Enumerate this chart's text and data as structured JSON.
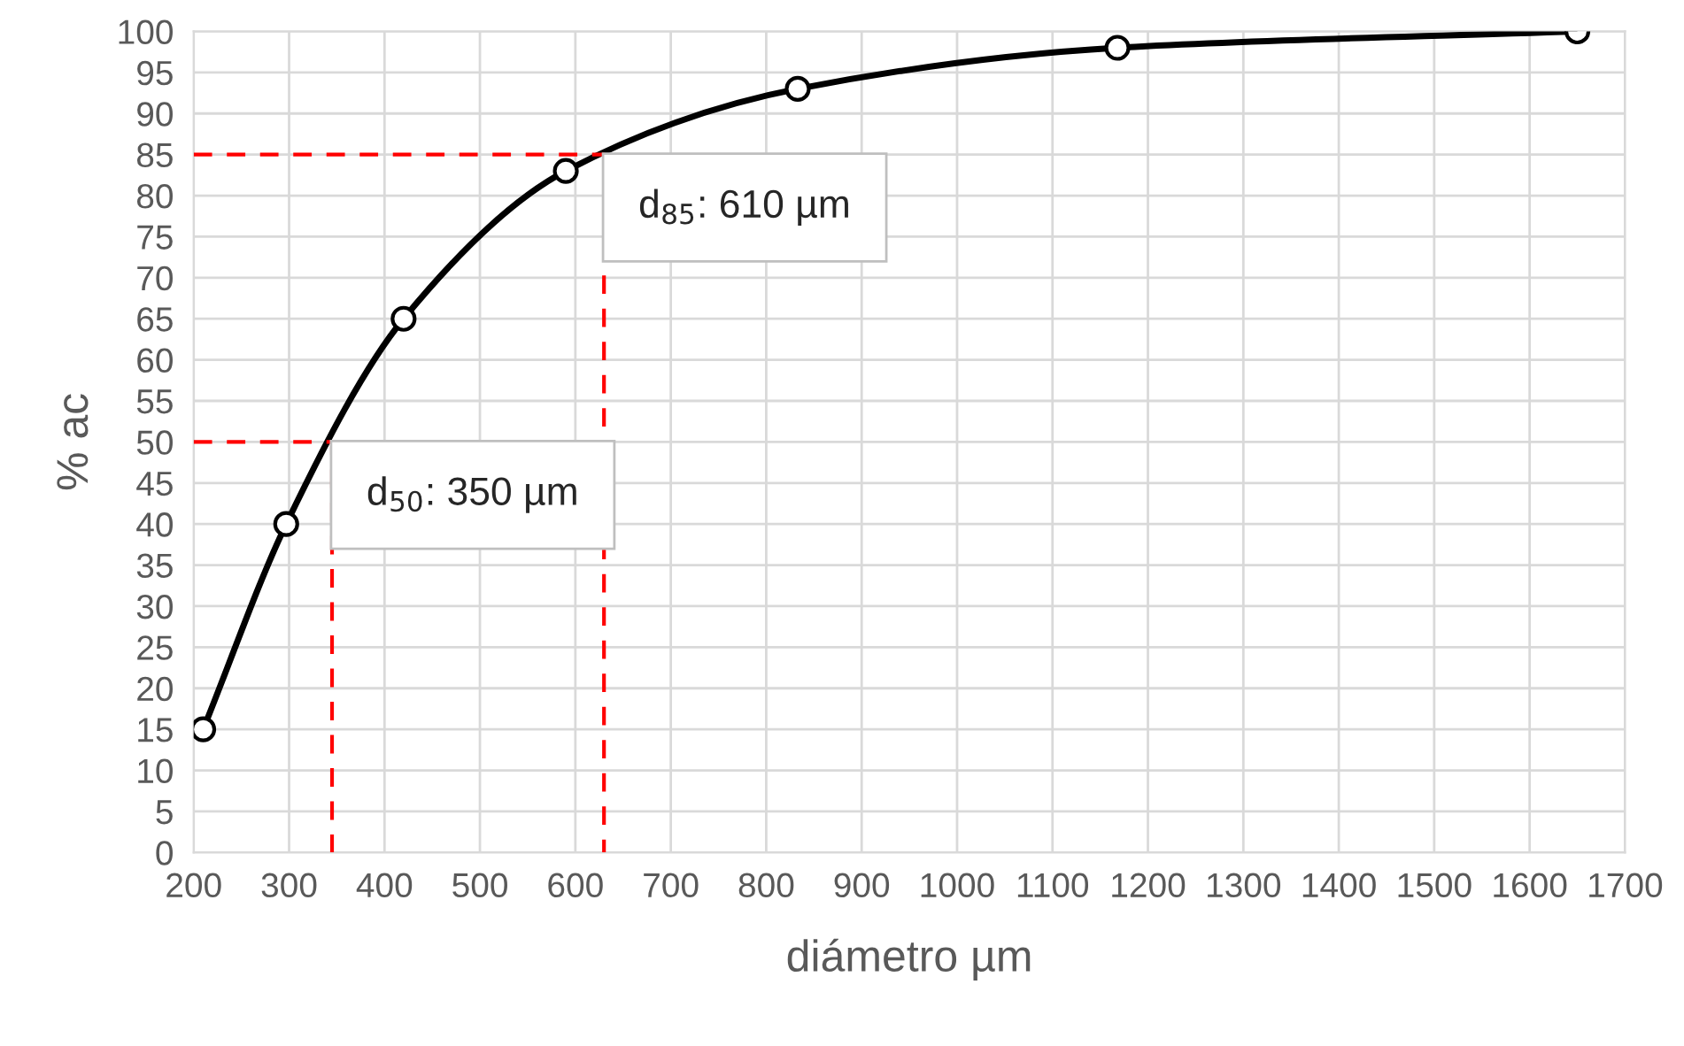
{
  "chart_data": {
    "type": "line",
    "xlabel": "diámetro µm",
    "ylabel": "% ac",
    "series": [
      {
        "color": "#000000",
        "marker": "circle",
        "line_style": "solid",
        "x": [
          210,
          297,
          420,
          590,
          833,
          1168,
          1650
        ],
        "values": [
          15,
          40,
          65,
          83,
          93,
          98,
          100
        ]
      },
      {
        "color": "#ff0000",
        "marker": "none",
        "line_style": "dashed",
        "x": [
          200,
          345,
          345
        ],
        "values": [
          50,
          50,
          0
        ]
      },
      {
        "color": "#ff0000",
        "marker": "none",
        "line_style": "dashed",
        "x": [
          200,
          630,
          630
        ],
        "values": [
          85,
          85,
          0
        ]
      }
    ],
    "annotations": [
      {
        "text": "d$_{50}$: 350 µm",
        "x": 345,
        "y": 50
      },
      {
        "text": "d$_{85}$: 610 µm",
        "x": 630,
        "y": 85
      }
    ],
    "xlim": [
      200,
      1700
    ],
    "xticks": [
      200,
      300,
      400,
      500,
      600,
      700,
      800,
      900,
      1000,
      1100,
      1200,
      1300,
      1400,
      1500,
      1600,
      1700
    ],
    "ylim": [
      0,
      100
    ],
    "yticks": [
      0,
      5,
      10,
      15,
      20,
      25,
      30,
      35,
      40,
      45,
      50,
      55,
      60,
      65,
      70,
      75,
      80,
      85,
      90,
      95,
      100
    ],
    "grid": true
  }
}
